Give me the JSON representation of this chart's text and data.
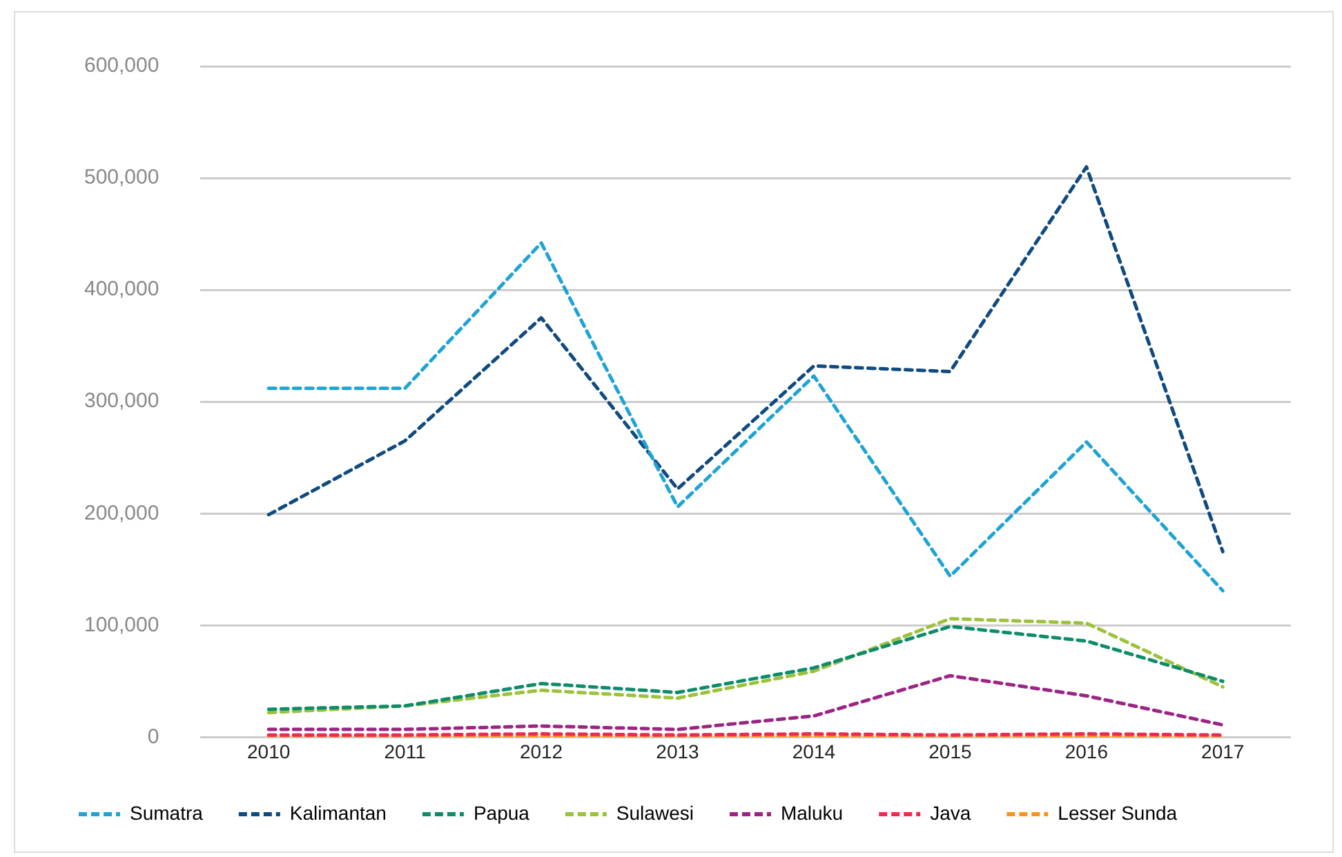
{
  "chart_data": {
    "type": "line",
    "categories": [
      "2010",
      "2011",
      "2012",
      "2013",
      "2014",
      "2015",
      "2016",
      "2017"
    ],
    "ylim": [
      0,
      600000
    ],
    "yticks": [
      {
        "value": 0,
        "label": "0"
      },
      {
        "value": 100000,
        "label": "100,000"
      },
      {
        "value": 200000,
        "label": "200,000"
      },
      {
        "value": 300000,
        "label": "300,000"
      },
      {
        "value": 400000,
        "label": "400,000"
      },
      {
        "value": 500000,
        "label": "500,000"
      },
      {
        "value": 600000,
        "label": "600,000"
      }
    ],
    "grid": "y",
    "legend": "bottom",
    "marker": "none",
    "line_style": "dashed",
    "series": [
      {
        "name": "Sumatra",
        "color": "#1fa3d6",
        "values": [
          312000,
          312000,
          442000,
          206000,
          323000,
          144000,
          264000,
          131000
        ]
      },
      {
        "name": "Kalimantan",
        "color": "#0f4a80",
        "values": [
          199000,
          265000,
          375000,
          222000,
          332000,
          327000,
          510000,
          166000
        ]
      },
      {
        "name": "Papua",
        "color": "#0e8c6a",
        "values": [
          25000,
          28000,
          48000,
          40000,
          62000,
          99000,
          86000,
          50000
        ]
      },
      {
        "name": "Sulawesi",
        "color": "#9cc23a",
        "values": [
          22000,
          28000,
          42000,
          35000,
          59000,
          106000,
          102000,
          45000
        ]
      },
      {
        "name": "Maluku",
        "color": "#9c2483",
        "values": [
          7000,
          7000,
          10000,
          7000,
          19000,
          55000,
          37000,
          11000
        ]
      },
      {
        "name": "Java",
        "color": "#ee2a50",
        "values": [
          2000,
          2000,
          3000,
          2000,
          3000,
          2000,
          3000,
          2000
        ]
      },
      {
        "name": "Lesser Sunda",
        "color": "#f7941d",
        "values": [
          1000,
          1000,
          1000,
          1000,
          1000,
          1000,
          1000,
          1000
        ]
      }
    ]
  }
}
